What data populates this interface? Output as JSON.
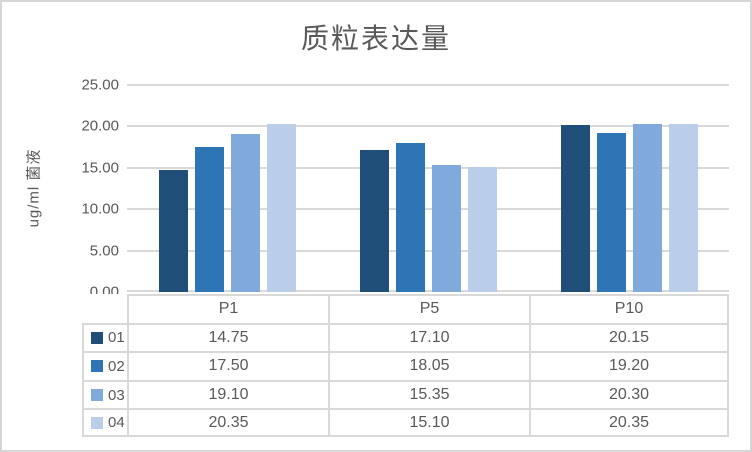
{
  "title": "质粒表达量",
  "colors": {
    "text": "#595959",
    "grid": "#D9D9D9",
    "chart_border": "#D6D6D6",
    "series_01": "#1F4E79",
    "series_02": "#2E75B6",
    "series_03": "#80AADB",
    "series_04": "#BACDE9"
  },
  "y_axis": {
    "title": "ug/ml 菌液",
    "tick_labels": [
      "25.00",
      "20.00",
      "15.00",
      "10.00",
      "5.00",
      "0.00"
    ]
  },
  "chart_data": {
    "type": "bar",
    "title": "质粒表达量",
    "xlabel": "",
    "ylabel": "ug/ml 菌液",
    "ylim": [
      0,
      25
    ],
    "y_tick_step": 5,
    "grid": true,
    "legend_position": "left-of-data-table",
    "data_table_shown": true,
    "value_format": "0.00",
    "categories": [
      "P1",
      "P5",
      "P10"
    ],
    "series": [
      {
        "name": "01",
        "color": "#1F4E79",
        "values": [
          14.75,
          17.1,
          20.15
        ]
      },
      {
        "name": "02",
        "color": "#2E75B6",
        "values": [
          17.5,
          18.05,
          19.2
        ]
      },
      {
        "name": "03",
        "color": "#80AADB",
        "values": [
          19.1,
          15.35,
          20.3
        ]
      },
      {
        "name": "04",
        "color": "#BACDE9",
        "values": [
          20.35,
          15.1,
          20.35
        ]
      }
    ]
  }
}
